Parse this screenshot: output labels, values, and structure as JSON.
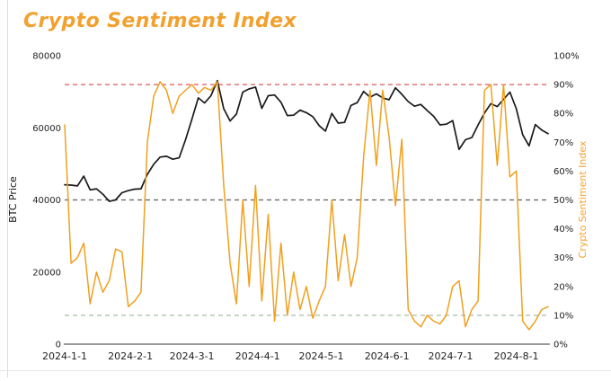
{
  "page": {
    "title": "Crypto Sentiment Index"
  },
  "colors": {
    "accent_orange": "#f2a12e",
    "btc_line": "#1a1a1a",
    "sentiment_line": "#f0a01e",
    "threshold_high": "#dd5a5a",
    "threshold_mid": "#5f5f5f",
    "threshold_low": "#a4bda4",
    "axis_line": "#9a9a9a",
    "tick_text": "#1f1f1f"
  },
  "chart_data": {
    "type": "line",
    "title": "Crypto Sentiment Index",
    "grid": "off",
    "legend_position": "none",
    "x_axis": {
      "range": [
        "2024-01-01",
        "2024-08-16"
      ],
      "ticks": [
        {
          "label": "2024-1-1",
          "date": "2024-01-01"
        },
        {
          "label": "2024-2-1",
          "date": "2024-02-01"
        },
        {
          "label": "2024-3-1",
          "date": "2024-03-01"
        },
        {
          "label": "2024-4-1",
          "date": "2024-04-01"
        },
        {
          "label": "2024-5-1",
          "date": "2024-05-01"
        },
        {
          "label": "2024-6-1",
          "date": "2024-06-01"
        },
        {
          "label": "2024-7-1",
          "date": "2024-07-01"
        },
        {
          "label": "2024-8-1",
          "date": "2024-08-01"
        }
      ]
    },
    "left_axis": {
      "label": "BTC Price",
      "min": 0,
      "max": 80000,
      "ticks": [
        0,
        20000,
        40000,
        60000,
        80000
      ]
    },
    "right_axis": {
      "label": "Crypto Sentiment Index",
      "min": 0,
      "max": 100,
      "ticks": [
        0,
        10,
        20,
        30,
        40,
        50,
        60,
        70,
        80,
        90,
        100
      ],
      "tick_suffix": "%"
    },
    "thresholds": [
      {
        "axis": "right",
        "value": 90,
        "color_key": "threshold_high"
      },
      {
        "axis": "right",
        "value": 50,
        "color_key": "threshold_mid"
      },
      {
        "axis": "right",
        "value": 10,
        "color_key": "threshold_low"
      }
    ],
    "dates": [
      "2024-01-01",
      "2024-01-04",
      "2024-01-07",
      "2024-01-10",
      "2024-01-13",
      "2024-01-16",
      "2024-01-19",
      "2024-01-22",
      "2024-01-25",
      "2024-01-28",
      "2024-01-31",
      "2024-02-03",
      "2024-02-06",
      "2024-02-09",
      "2024-02-12",
      "2024-02-15",
      "2024-02-18",
      "2024-02-21",
      "2024-02-24",
      "2024-02-27",
      "2024-03-01",
      "2024-03-04",
      "2024-03-07",
      "2024-03-10",
      "2024-03-13",
      "2024-03-16",
      "2024-03-19",
      "2024-03-22",
      "2024-03-25",
      "2024-03-28",
      "2024-03-31",
      "2024-04-03",
      "2024-04-06",
      "2024-04-09",
      "2024-04-12",
      "2024-04-15",
      "2024-04-18",
      "2024-04-21",
      "2024-04-24",
      "2024-04-27",
      "2024-04-30",
      "2024-05-03",
      "2024-05-06",
      "2024-05-09",
      "2024-05-12",
      "2024-05-15",
      "2024-05-18",
      "2024-05-21",
      "2024-05-24",
      "2024-05-27",
      "2024-05-30",
      "2024-06-02",
      "2024-06-05",
      "2024-06-08",
      "2024-06-11",
      "2024-06-14",
      "2024-06-17",
      "2024-06-20",
      "2024-06-23",
      "2024-06-26",
      "2024-06-29",
      "2024-07-02",
      "2024-07-05",
      "2024-07-08",
      "2024-07-11",
      "2024-07-14",
      "2024-07-17",
      "2024-07-20",
      "2024-07-23",
      "2024-07-26",
      "2024-07-29",
      "2024-08-01",
      "2024-08-04",
      "2024-08-07",
      "2024-08-10",
      "2024-08-13",
      "2024-08-16"
    ],
    "series": [
      {
        "name": "BTC Price",
        "axis": "left",
        "color_key": "btc_line",
        "values": [
          44200,
          44100,
          43900,
          46600,
          42800,
          43100,
          41600,
          39600,
          40000,
          42000,
          42600,
          43000,
          43100,
          47100,
          49900,
          51900,
          52100,
          51300,
          51700,
          56700,
          62400,
          68300,
          66900,
          68900,
          73100,
          65300,
          61900,
          63800,
          69900,
          70800,
          71300,
          65400,
          68900,
          69100,
          67100,
          63400,
          63500,
          64900,
          64200,
          63100,
          60600,
          59100,
          64000,
          61300,
          61500,
          66200,
          67000,
          70100,
          68500,
          69400,
          68300,
          67800,
          71100,
          69300,
          67300,
          66000,
          66500,
          64800,
          63200,
          60800,
          61000,
          62000,
          54000,
          56700,
          57300,
          60800,
          64100,
          66700,
          65900,
          67900,
          69900,
          65300,
          58100,
          55000,
          60900,
          59400,
          58400
        ]
      },
      {
        "name": "Crypto Sentiment Index",
        "axis": "right",
        "color_key": "sentiment_line",
        "values": [
          76,
          28,
          30,
          35,
          14,
          25,
          18,
          22,
          33,
          32,
          13,
          15,
          18,
          70,
          86,
          91,
          88,
          80,
          86,
          88,
          90,
          87,
          89,
          88,
          91,
          55,
          28,
          14,
          50,
          20,
          55,
          15,
          45,
          8,
          35,
          10,
          25,
          12,
          20,
          9,
          15,
          20,
          50,
          22,
          38,
          20,
          30,
          65,
          88,
          62,
          88,
          72,
          48,
          71,
          12,
          8,
          6,
          10,
          8,
          7,
          10,
          20,
          22,
          6,
          12,
          15,
          88,
          90,
          62,
          90,
          58,
          60,
          8,
          5,
          8,
          12,
          13
        ]
      }
    ]
  }
}
